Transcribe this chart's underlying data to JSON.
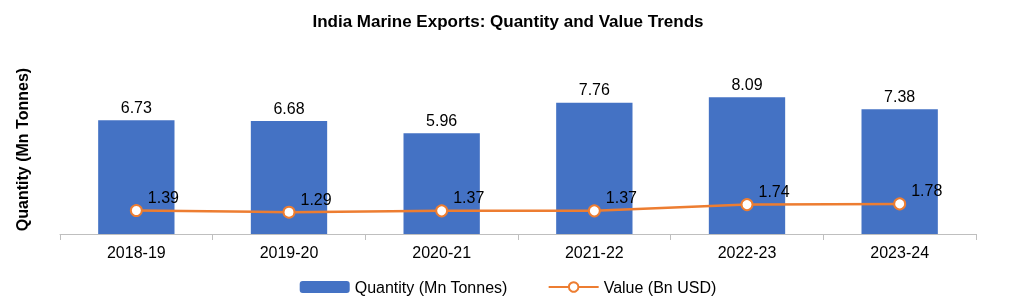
{
  "chart_data": {
    "type": "bar",
    "title": "India Marine Exports: Quantity and Value Trends",
    "ylabel": "Quantity (Mn Tonnes)",
    "categories": [
      "2018-19",
      "2019-20",
      "2020-21",
      "2021-22",
      "2022-23",
      "2023-24"
    ],
    "series": [
      {
        "name": "Quantity (Mn Tonnes)",
        "color": "#4472c4",
        "values": [
          6.73,
          6.68,
          5.96,
          7.76,
          8.09,
          7.38
        ]
      },
      {
        "name": "Value (Bn USD)",
        "type": "line",
        "color": "#ed7d31",
        "marker": "circle",
        "values": [
          1.39,
          1.29,
          1.37,
          1.37,
          1.74,
          1.78
        ]
      }
    ],
    "data_labels": true,
    "legend": "bottom",
    "grid": false,
    "tick_labels": "x"
  }
}
